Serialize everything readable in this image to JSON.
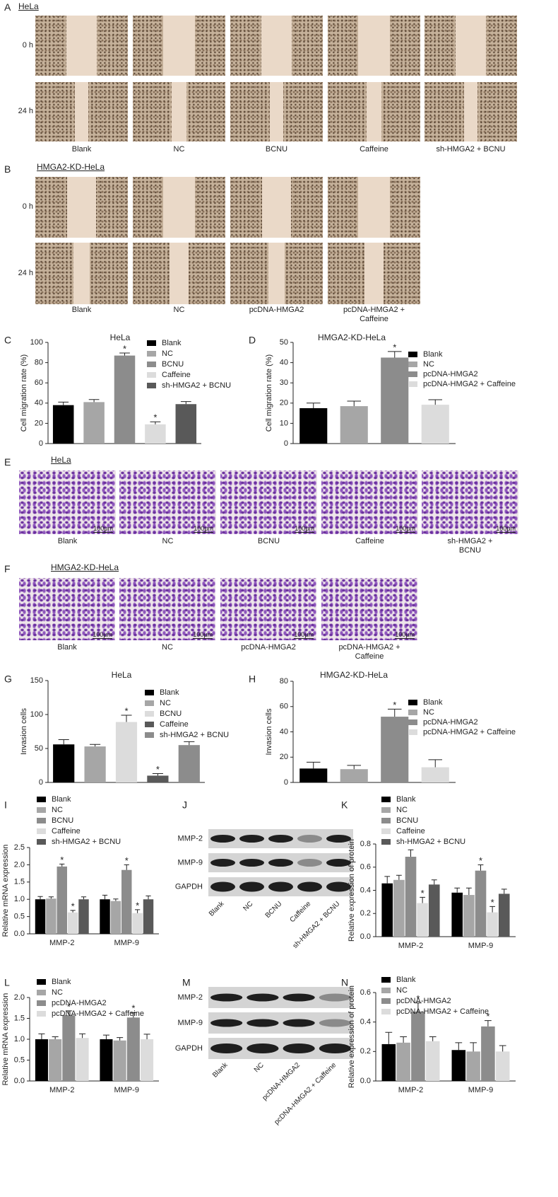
{
  "wound_a": {
    "label": "A",
    "title": "HeLa",
    "rows": [
      "0 h",
      "24 h"
    ],
    "groups": [
      "Blank",
      "NC",
      "BCNU",
      "Caffeine",
      "sh-HMGA2 + BCNU"
    ]
  },
  "wound_b": {
    "label": "B",
    "title": "HMGA2-KD-HeLa",
    "rows": [
      "0 h",
      "24 h"
    ],
    "groups": [
      "Blank",
      "NC",
      "pcDNA-HMGA2",
      "pcDNA-HMGA2 + Caffeine"
    ]
  },
  "transwell_e": {
    "label": "E",
    "title": "HeLa",
    "groups": [
      "Blank",
      "NC",
      "BCNU",
      "Caffeine",
      "sh-HMGA2 + BCNU"
    ],
    "scale_bar": "100μm"
  },
  "transwell_f": {
    "label": "F",
    "title": "HMGA2-KD-HeLa",
    "groups": [
      "Blank",
      "NC",
      "pcDNA-HMGA2",
      "pcDNA-HMGA2 + Caffeine"
    ],
    "scale_bar": "100μm"
  },
  "blot_j": {
    "label": "J",
    "rows": [
      "MMP-2",
      "MMP-9",
      "GAPDH"
    ],
    "lanes": [
      "Blank",
      "NC",
      "BCNU",
      "Caffeine",
      "sh-HMGA2 + BCNU"
    ]
  },
  "blot_m": {
    "label": "M",
    "rows": [
      "MMP-2",
      "MMP-9",
      "GAPDH"
    ],
    "lanes": [
      "Blank",
      "NC",
      "pcDNA-HMGA2",
      "pcDNA-HMGA2 + Caffeine"
    ]
  },
  "chart_data": [
    {
      "type": "bar",
      "label": "C",
      "title": "HeLa",
      "y_label": "Cell migration rate (%)",
      "categories": [
        "Blank",
        "NC",
        "BCNU",
        "Caffeine",
        "sh-HMGA2 + BCNU"
      ],
      "colors": [
        "#000000",
        "#a6a6a6",
        "#8c8c8c",
        "#dcdcdc",
        "#595959"
      ],
      "values": [
        38,
        41,
        87,
        19,
        39
      ],
      "errors": [
        3,
        2.5,
        2.5,
        2.5,
        2.5
      ],
      "stars": [
        null,
        null,
        "*",
        "*",
        null
      ],
      "ylim": [
        0,
        100
      ],
      "yticks": [
        0,
        20,
        40,
        60,
        80,
        100
      ]
    },
    {
      "type": "bar",
      "label": "D",
      "title": "HMGA2-KD-HeLa",
      "y_label": "Cell migration rate (%)",
      "categories": [
        "Blank",
        "NC",
        "pcDNA-HMGA2",
        "pcDNA-HMGA2 + Caffeine"
      ],
      "colors": [
        "#000000",
        "#a6a6a6",
        "#8c8c8c",
        "#dcdcdc"
      ],
      "values": [
        17.5,
        18.5,
        42.5,
        19.2
      ],
      "errors": [
        2.5,
        2.5,
        3,
        2.5
      ],
      "stars": [
        null,
        null,
        "*",
        null
      ],
      "ylim": [
        0,
        50
      ],
      "yticks": [
        0,
        10,
        20,
        30,
        40,
        50
      ]
    },
    {
      "type": "bar",
      "label": "G",
      "title": "HeLa",
      "y_label": "Invasion cells",
      "categories": [
        "Blank",
        "NC",
        "BCNU",
        "Caffeine",
        "sh-HMGA2 + BCNU"
      ],
      "colors": [
        "#000000",
        "#a6a6a6",
        "#dcdcdc",
        "#595959",
        "#8c8c8c"
      ],
      "values": [
        56,
        53,
        89,
        10,
        55
      ],
      "errors": [
        7,
        3,
        10,
        3,
        5
      ],
      "stars": [
        null,
        null,
        "*",
        "*",
        null
      ],
      "ylim": [
        0,
        150
      ],
      "yticks": [
        0,
        50,
        100,
        150
      ]
    },
    {
      "type": "bar",
      "label": "H",
      "title": "HMGA2-KD-HeLa",
      "y_label": "Invasion cells",
      "categories": [
        "Blank",
        "NC",
        "pcDNA-HMGA2",
        "pcDNA-HMGA2 + Caffeine"
      ],
      "colors": [
        "#000000",
        "#a6a6a6",
        "#8c8c8c",
        "#dcdcdc"
      ],
      "values": [
        11,
        10.5,
        52,
        12
      ],
      "errors": [
        5,
        3,
        6,
        6
      ],
      "stars": [
        null,
        null,
        "*",
        null
      ],
      "ylim": [
        0,
        80
      ],
      "yticks": [
        0,
        20,
        40,
        60,
        80
      ]
    },
    {
      "type": "grouped_bar",
      "label": "I",
      "y_label": "Relative mRNA expression",
      "categories": [
        "MMP-2",
        "MMP-9"
      ],
      "series": [
        {
          "name": "Blank",
          "color": "#000000",
          "values": [
            1.0,
            1.0
          ],
          "errors": [
            0.08,
            0.12
          ],
          "stars": [
            null,
            null
          ]
        },
        {
          "name": "NC",
          "color": "#a6a6a6",
          "values": [
            1.02,
            0.95
          ],
          "errors": [
            0.05,
            0.06
          ],
          "stars": [
            null,
            null
          ]
        },
        {
          "name": "BCNU",
          "color": "#8c8c8c",
          "values": [
            1.95,
            1.85
          ],
          "errors": [
            0.07,
            0.15
          ],
          "stars": [
            "*",
            "*"
          ]
        },
        {
          "name": "Caffeine",
          "color": "#dcdcdc",
          "values": [
            0.62,
            0.6
          ],
          "errors": [
            0.06,
            0.1
          ],
          "stars": [
            "*",
            "*"
          ]
        },
        {
          "name": "sh-HMGA2 + BCNU",
          "color": "#595959",
          "values": [
            1.0,
            1.0
          ],
          "errors": [
            0.07,
            0.1
          ],
          "stars": [
            null,
            null
          ]
        }
      ],
      "ylim": [
        0,
        2.5
      ],
      "yticks": [
        {
          "value": 0,
          "label": "0.0"
        },
        0.5,
        {
          "value": 1,
          "label": "1.0"
        },
        1.5,
        {
          "value": 2,
          "label": "2.0"
        },
        2.5
      ]
    },
    {
      "type": "grouped_bar",
      "label": "K",
      "y_label": "Relative expression of protein",
      "categories": [
        "MMP-2",
        "MMP-9"
      ],
      "series": [
        {
          "name": "Blank",
          "color": "#000000",
          "values": [
            0.46,
            0.38
          ],
          "errors": [
            0.06,
            0.04
          ],
          "stars": [
            null,
            null
          ]
        },
        {
          "name": "NC",
          "color": "#a6a6a6",
          "values": [
            0.49,
            0.36
          ],
          "errors": [
            0.04,
            0.06
          ],
          "stars": [
            null,
            null
          ]
        },
        {
          "name": "BCNU",
          "color": "#8c8c8c",
          "values": [
            0.69,
            0.57
          ],
          "errors": [
            0.06,
            0.05
          ],
          "stars": [
            null,
            "*"
          ]
        },
        {
          "name": "Caffeine",
          "color": "#dcdcdc",
          "values": [
            0.29,
            0.21
          ],
          "errors": [
            0.05,
            0.05
          ],
          "stars": [
            "*",
            "*"
          ]
        },
        {
          "name": "sh-HMGA2 + BCNU",
          "color": "#595959",
          "values": [
            0.45,
            0.37
          ],
          "errors": [
            0.04,
            0.04
          ],
          "stars": [
            null,
            null
          ]
        }
      ],
      "ylim": [
        0,
        0.8
      ],
      "yticks": [
        {
          "value": 0,
          "label": "0.0"
        },
        0.2,
        0.4,
        0.6,
        0.8
      ]
    },
    {
      "type": "grouped_bar",
      "label": "L",
      "y_label": "Relative mRNA expression",
      "categories": [
        "MMP-2",
        "MMP-9"
      ],
      "series": [
        {
          "name": "Blank",
          "color": "#000000",
          "values": [
            1.0,
            1.0
          ],
          "errors": [
            0.13,
            0.1
          ],
          "stars": [
            null,
            null
          ]
        },
        {
          "name": "NC",
          "color": "#a6a6a6",
          "values": [
            1.0,
            0.97
          ],
          "errors": [
            0.06,
            0.07
          ],
          "stars": [
            null,
            null
          ]
        },
        {
          "name": "pcDNA-HMGA2",
          "color": "#8c8c8c",
          "values": [
            1.58,
            1.52
          ],
          "errors": [
            0.1,
            0.12
          ],
          "stars": [
            "*",
            "*"
          ]
        },
        {
          "name": "pcDNA-HMGA2 + Caffeine",
          "color": "#dcdcdc",
          "values": [
            1.03,
            1.0
          ],
          "errors": [
            0.1,
            0.12
          ],
          "stars": [
            null,
            null
          ]
        }
      ],
      "ylim": [
        0,
        2.0
      ],
      "yticks": [
        {
          "value": 0,
          "label": "0.0"
        },
        0.5,
        {
          "value": 1,
          "label": "1.0"
        },
        1.5,
        {
          "value": 2,
          "label": "2.0"
        }
      ]
    },
    {
      "type": "grouped_bar",
      "label": "N",
      "y_label": "Relative expression of protein",
      "categories": [
        "MMP-2",
        "MMP-9"
      ],
      "series": [
        {
          "name": "Blank",
          "color": "#000000",
          "values": [
            0.25,
            0.21
          ],
          "errors": [
            0.08,
            0.05
          ],
          "stars": [
            null,
            null
          ]
        },
        {
          "name": "NC",
          "color": "#a6a6a6",
          "values": [
            0.26,
            0.2
          ],
          "errors": [
            0.04,
            0.06
          ],
          "stars": [
            null,
            null
          ]
        },
        {
          "name": "pcDNA-HMGA2",
          "color": "#8c8c8c",
          "values": [
            0.47,
            0.37
          ],
          "errors": [
            0.06,
            0.04
          ],
          "stars": [
            "*",
            "*"
          ]
        },
        {
          "name": "pcDNA-HMGA2 + Caffeine",
          "color": "#dcdcdc",
          "values": [
            0.27,
            0.2
          ],
          "errors": [
            0.03,
            0.04
          ],
          "stars": [
            null,
            null
          ]
        }
      ],
      "ylim": [
        0,
        0.6
      ],
      "yticks": [
        {
          "value": 0,
          "label": "0.0"
        },
        0.2,
        0.4,
        0.6
      ]
    }
  ]
}
